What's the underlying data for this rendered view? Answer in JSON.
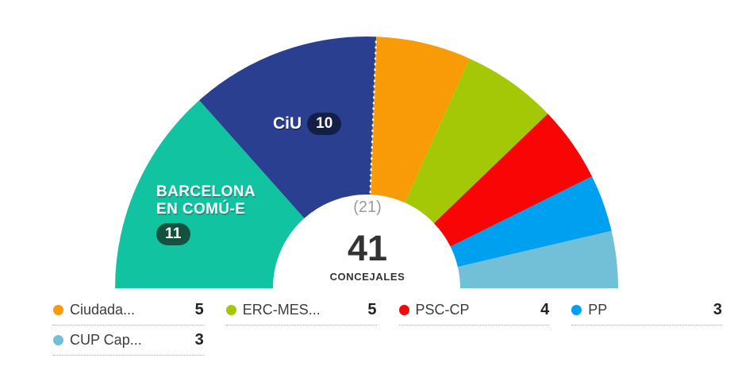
{
  "chart_data": {
    "type": "parliament-semicircle",
    "title": "",
    "total_seats": 41,
    "total_display": "41",
    "total_label": "CONCEJALES",
    "majority": 21,
    "majority_label": "(21)",
    "legend_position": "bottom",
    "series": [
      {
        "name": "BARCELONA EN COMÚ-E",
        "seats": 11,
        "color": "#12C3A2",
        "badge_color": "#14523F"
      },
      {
        "name": "CiU",
        "seats": 10,
        "color": "#2B3F90",
        "badge_color": "#131F47"
      },
      {
        "name": "Ciudadanos",
        "seats": 5,
        "color": "#F99B06"
      },
      {
        "name": "ERC-MES",
        "seats": 5,
        "color": "#A4C806"
      },
      {
        "name": "PSC-CP",
        "seats": 4,
        "color": "#FA0505"
      },
      {
        "name": "PP",
        "seats": 3,
        "color": "#00A0F0"
      },
      {
        "name": "CUP Capgirem",
        "seats": 3,
        "color": "#72BFD8"
      }
    ]
  },
  "labels": {
    "bcn_line1": "BARCELONA",
    "bcn_line2": "EN COMÚ-E",
    "bcn_badge": "11",
    "ciu_name": "CiU",
    "ciu_badge": "10"
  },
  "legend": {
    "items": [
      {
        "name": "Ciudada...",
        "value": "5",
        "color": "#F99B06"
      },
      {
        "name": "ERC-MES...",
        "value": "5",
        "color": "#A4C806"
      },
      {
        "name": "PSC-CP",
        "value": "4",
        "color": "#FA0505"
      },
      {
        "name": "PP",
        "value": "3",
        "color": "#00A0F0"
      },
      {
        "name": "CUP Cap...",
        "value": "3",
        "color": "#72BFD8"
      }
    ]
  }
}
